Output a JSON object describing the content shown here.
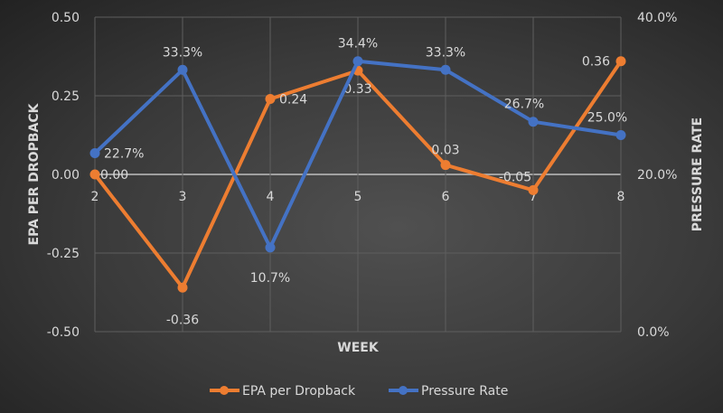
{
  "chart_data": {
    "type": "line",
    "title": "",
    "xlabel": "WEEK",
    "ylabel": "EPA PER DROPBACK",
    "y2label": "PRESSURE RATE",
    "x": [
      "2",
      "3",
      "4",
      "5",
      "6",
      "7",
      "8"
    ],
    "ylim": [
      -0.5,
      0.5
    ],
    "yticks": [
      "0.50",
      "0.25",
      "0.00",
      "-0.25",
      "-0.50"
    ],
    "ytick_values": [
      0.5,
      0.25,
      0.0,
      -0.25,
      -0.5
    ],
    "y2lim": [
      0.0,
      0.4
    ],
    "y2ticks": [
      "40.0%",
      "20.0%",
      "0.0%"
    ],
    "y2tick_values": [
      0.4,
      0.2,
      0.0
    ],
    "grid": true,
    "legend": "bottom",
    "series": [
      {
        "name": "EPA per Dropback",
        "axis": "left",
        "color": "#ed7d31",
        "values": [
          0.0,
          -0.36,
          0.24,
          0.33,
          0.03,
          -0.05,
          0.36
        ],
        "labels": [
          "0.00",
          "-0.36",
          "0.24",
          "0.33",
          "0.03",
          "-0.05",
          "0.36"
        ]
      },
      {
        "name": "Pressure Rate",
        "axis": "right",
        "color": "#4472c4",
        "values": [
          0.227,
          0.333,
          0.107,
          0.344,
          0.333,
          0.267,
          0.25
        ],
        "labels": [
          "22.7%",
          "33.3%",
          "10.7%",
          "34.4%",
          "33.3%",
          "26.7%",
          "25.0%"
        ]
      }
    ]
  }
}
